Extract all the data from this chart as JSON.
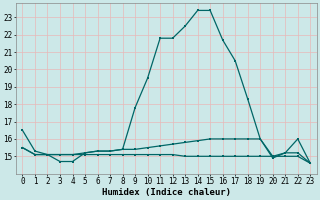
{
  "title": "",
  "xlabel": "Humidex (Indice chaleur)",
  "background_color": "#cce8e8",
  "plot_bg_color": "#cce8e8",
  "grid_color": "#e8b8b8",
  "line_color": "#006666",
  "xlim": [
    -0.5,
    23.5
  ],
  "ylim": [
    14.0,
    23.8
  ],
  "yticks": [
    15,
    16,
    17,
    18,
    19,
    20,
    21,
    22,
    23
  ],
  "xticks": [
    0,
    1,
    2,
    3,
    4,
    5,
    6,
    7,
    8,
    9,
    10,
    11,
    12,
    13,
    14,
    15,
    16,
    17,
    18,
    19,
    20,
    21,
    22,
    23
  ],
  "line1_x": [
    0,
    1,
    2,
    3,
    4,
    5,
    6,
    7,
    8,
    9,
    10,
    11,
    12,
    13,
    14,
    15,
    16,
    17,
    18,
    19,
    20,
    21,
    22,
    23
  ],
  "line1_y": [
    16.5,
    15.3,
    15.1,
    14.7,
    14.7,
    15.2,
    15.3,
    15.3,
    15.4,
    17.8,
    19.5,
    21.8,
    21.8,
    22.5,
    23.4,
    23.4,
    21.7,
    20.5,
    18.3,
    16.0,
    14.9,
    15.2,
    16.0,
    14.6
  ],
  "line2_x": [
    0,
    1,
    2,
    3,
    4,
    5,
    6,
    7,
    8,
    9,
    10,
    11,
    12,
    13,
    14,
    15,
    16,
    17,
    18,
    19,
    20,
    21,
    22,
    23
  ],
  "line2_y": [
    15.5,
    15.1,
    15.1,
    15.1,
    15.1,
    15.2,
    15.3,
    15.3,
    15.4,
    15.4,
    15.5,
    15.6,
    15.7,
    15.8,
    15.9,
    16.0,
    16.0,
    16.0,
    16.0,
    16.0,
    15.0,
    15.2,
    15.2,
    14.6
  ],
  "line3_x": [
    0,
    1,
    2,
    3,
    4,
    5,
    6,
    7,
    8,
    9,
    10,
    11,
    12,
    13,
    14,
    15,
    16,
    17,
    18,
    19,
    20,
    21,
    22,
    23
  ],
  "line3_y": [
    15.5,
    15.1,
    15.1,
    15.1,
    15.1,
    15.1,
    15.1,
    15.1,
    15.1,
    15.1,
    15.1,
    15.1,
    15.1,
    15.0,
    15.0,
    15.0,
    15.0,
    15.0,
    15.0,
    15.0,
    15.0,
    15.0,
    15.0,
    14.6
  ],
  "xlabel_fontsize": 6.5,
  "tick_fontsize": 5.5,
  "marker_size": 2.0,
  "linewidth": 0.9
}
